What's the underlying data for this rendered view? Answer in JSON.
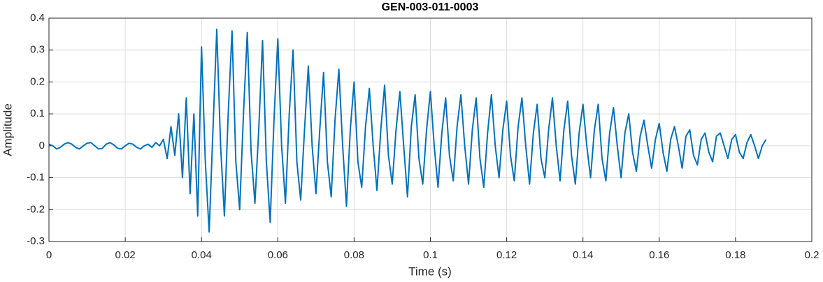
{
  "chart_data": {
    "type": "line",
    "title": "GEN-003-011-0003",
    "xlabel": "Time (s)",
    "ylabel": "Amplitude",
    "grid": true,
    "xlim": [
      0,
      0.2
    ],
    "xticks": [
      0,
      0.02,
      0.04,
      0.06,
      0.08,
      0.1,
      0.12,
      0.14,
      0.16,
      0.18,
      0.2
    ],
    "ylim": [
      -0.3,
      0.4
    ],
    "yticks": [
      -0.3,
      -0.2,
      -0.1,
      0,
      0.1,
      0.2,
      0.3,
      0.4
    ],
    "x": [
      0,
      0.001,
      0.002,
      0.003,
      0.004,
      0.005,
      0.006,
      0.007,
      0.008,
      0.009,
      0.01,
      0.011,
      0.012,
      0.013,
      0.014,
      0.015,
      0.016,
      0.017,
      0.018,
      0.019,
      0.02,
      0.021,
      0.022,
      0.023,
      0.024,
      0.025,
      0.026,
      0.027,
      0.028,
      0.029,
      0.03,
      0.031,
      0.032,
      0.033,
      0.034,
      0.035,
      0.036,
      0.037,
      0.038,
      0.039,
      0.04,
      0.041,
      0.042,
      0.043,
      0.044,
      0.045,
      0.046,
      0.047,
      0.048,
      0.049,
      0.05,
      0.051,
      0.052,
      0.053,
      0.054,
      0.055,
      0.056,
      0.057,
      0.058,
      0.059,
      0.06,
      0.061,
      0.062,
      0.063,
      0.064,
      0.065,
      0.066,
      0.067,
      0.068,
      0.069,
      0.07,
      0.071,
      0.072,
      0.073,
      0.074,
      0.075,
      0.076,
      0.077,
      0.078,
      0.079,
      0.08,
      0.081,
      0.082,
      0.083,
      0.084,
      0.085,
      0.086,
      0.087,
      0.088,
      0.089,
      0.09,
      0.091,
      0.092,
      0.093,
      0.094,
      0.095,
      0.096,
      0.097,
      0.098,
      0.099,
      0.1,
      0.101,
      0.102,
      0.103,
      0.104,
      0.105,
      0.106,
      0.107,
      0.108,
      0.109,
      0.11,
      0.111,
      0.112,
      0.113,
      0.114,
      0.115,
      0.116,
      0.117,
      0.118,
      0.119,
      0.12,
      0.121,
      0.122,
      0.123,
      0.124,
      0.125,
      0.126,
      0.127,
      0.128,
      0.129,
      0.13,
      0.131,
      0.132,
      0.133,
      0.134,
      0.135,
      0.136,
      0.137,
      0.138,
      0.139,
      0.14,
      0.141,
      0.142,
      0.143,
      0.144,
      0.145,
      0.146,
      0.147,
      0.148,
      0.149,
      0.15,
      0.151,
      0.152,
      0.153,
      0.154,
      0.155,
      0.156,
      0.157,
      0.158,
      0.159,
      0.16,
      0.161,
      0.162,
      0.163,
      0.164,
      0.165,
      0.166,
      0.167,
      0.168,
      0.169,
      0.17,
      0.171,
      0.172,
      0.173,
      0.174,
      0.175,
      0.176,
      0.177,
      0.178,
      0.179,
      0.18,
      0.181,
      0.182,
      0.183,
      0.184,
      0.185,
      0.186,
      0.187,
      0.188
    ],
    "series": [
      {
        "name": "Amplitude",
        "color": "#0072bd",
        "values": [
          0.005,
          0.0,
          -0.01,
          -0.005,
          0.005,
          0.01,
          0.005,
          -0.005,
          -0.01,
          0.0,
          0.008,
          0.01,
          0.0,
          -0.01,
          -0.008,
          0.005,
          0.01,
          0.003,
          -0.008,
          -0.01,
          0.0,
          0.008,
          0.005,
          -0.005,
          -0.01,
          0.0,
          0.005,
          -0.005,
          0.01,
          0.0,
          0.02,
          -0.04,
          0.06,
          -0.03,
          0.1,
          -0.1,
          0.15,
          -0.15,
          0.1,
          -0.22,
          0.31,
          -0.05,
          -0.27,
          0.05,
          0.365,
          0.0,
          -0.22,
          0.1,
          0.36,
          -0.05,
          -0.2,
          0.1,
          0.355,
          -0.02,
          -0.18,
          0.05,
          0.33,
          -0.05,
          -0.24,
          0.08,
          0.335,
          0.0,
          -0.18,
          0.1,
          0.3,
          -0.05,
          -0.17,
          0.05,
          0.25,
          0.0,
          -0.15,
          0.05,
          0.23,
          -0.05,
          -0.16,
          0.08,
          0.24,
          0.0,
          -0.19,
          0.05,
          0.2,
          -0.05,
          -0.13,
          0.06,
          0.18,
          0.0,
          -0.14,
          0.05,
          0.19,
          -0.03,
          -0.12,
          0.05,
          0.17,
          0.0,
          -0.16,
          0.06,
          0.16,
          -0.04,
          -0.12,
          0.05,
          0.17,
          0.0,
          -0.13,
          0.04,
          0.15,
          -0.03,
          -0.11,
          0.06,
          0.16,
          0.0,
          -0.12,
          0.05,
          0.15,
          -0.04,
          -0.13,
          0.04,
          0.16,
          0.0,
          -0.1,
          0.05,
          0.14,
          -0.03,
          -0.11,
          0.06,
          0.15,
          0.0,
          -0.12,
          0.04,
          0.13,
          -0.04,
          -0.1,
          0.05,
          0.15,
          0.0,
          -0.11,
          0.05,
          0.14,
          -0.03,
          -0.12,
          0.04,
          0.13,
          0.0,
          -0.1,
          0.05,
          0.13,
          -0.04,
          -0.11,
          0.04,
          0.12,
          0.0,
          -0.1,
          0.04,
          0.1,
          -0.02,
          -0.08,
          0.03,
          0.08,
          0.0,
          -0.07,
          0.02,
          0.07,
          -0.02,
          -0.08,
          0.02,
          0.06,
          0.0,
          -0.07,
          0.03,
          0.05,
          -0.03,
          -0.06,
          0.02,
          0.04,
          -0.02,
          -0.05,
          0.03,
          0.04,
          0.0,
          -0.04,
          0.02,
          0.035,
          -0.02,
          -0.04,
          0.01,
          0.035,
          0.0,
          -0.04,
          0.0,
          0.02
        ]
      }
    ]
  }
}
